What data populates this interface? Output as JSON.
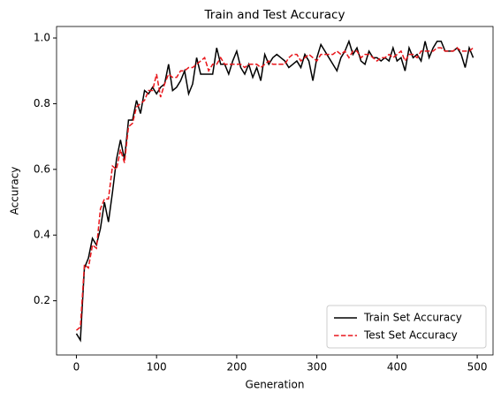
{
  "chart_data": {
    "type": "line",
    "title": "Train and Test Accuracy",
    "x_label": "Generation",
    "y_label": "Accuracy",
    "x": [
      0,
      5,
      10,
      15,
      20,
      25,
      30,
      35,
      40,
      45,
      50,
      55,
      60,
      65,
      70,
      75,
      80,
      85,
      90,
      95,
      100,
      105,
      110,
      115,
      120,
      125,
      130,
      135,
      140,
      145,
      150,
      155,
      160,
      165,
      170,
      175,
      180,
      185,
      190,
      195,
      200,
      205,
      210,
      215,
      220,
      225,
      230,
      235,
      240,
      245,
      250,
      255,
      260,
      265,
      270,
      275,
      280,
      285,
      290,
      295,
      300,
      305,
      310,
      315,
      320,
      325,
      330,
      335,
      340,
      345,
      350,
      355,
      360,
      365,
      370,
      375,
      380,
      385,
      390,
      395,
      400,
      405,
      410,
      415,
      420,
      425,
      430,
      435,
      440,
      445,
      450,
      455,
      460,
      465,
      470,
      475,
      480,
      485,
      490,
      495
    ],
    "series": [
      {
        "name": "Train Set Accuracy",
        "color": "#000000",
        "dash": false,
        "values": [
          0.1,
          0.08,
          0.3,
          0.33,
          0.39,
          0.37,
          0.42,
          0.5,
          0.44,
          0.53,
          0.63,
          0.69,
          0.63,
          0.75,
          0.75,
          0.81,
          0.77,
          0.84,
          0.83,
          0.85,
          0.83,
          0.85,
          0.86,
          0.92,
          0.84,
          0.85,
          0.87,
          0.9,
          0.83,
          0.86,
          0.94,
          0.89,
          0.89,
          0.89,
          0.89,
          0.97,
          0.92,
          0.92,
          0.89,
          0.93,
          0.96,
          0.91,
          0.89,
          0.92,
          0.88,
          0.91,
          0.87,
          0.95,
          0.92,
          0.94,
          0.95,
          0.94,
          0.93,
          0.91,
          0.92,
          0.93,
          0.91,
          0.95,
          0.93,
          0.87,
          0.94,
          0.98,
          0.96,
          0.94,
          0.92,
          0.9,
          0.94,
          0.96,
          0.99,
          0.95,
          0.97,
          0.93,
          0.92,
          0.96,
          0.94,
          0.94,
          0.93,
          0.94,
          0.93,
          0.97,
          0.93,
          0.94,
          0.9,
          0.97,
          0.94,
          0.95,
          0.93,
          0.99,
          0.94,
          0.97,
          0.99,
          0.99,
          0.96,
          0.96,
          0.96,
          0.97,
          0.95,
          0.91,
          0.97,
          0.94
        ]
      },
      {
        "name": "Test Set Accuracy",
        "color": "#e8161b",
        "dash": true,
        "values": [
          0.11,
          0.12,
          0.31,
          0.3,
          0.37,
          0.36,
          0.48,
          0.51,
          0.51,
          0.61,
          0.6,
          0.66,
          0.62,
          0.73,
          0.74,
          0.79,
          0.8,
          0.81,
          0.84,
          0.84,
          0.89,
          0.82,
          0.86,
          0.89,
          0.88,
          0.88,
          0.9,
          0.9,
          0.91,
          0.91,
          0.92,
          0.93,
          0.94,
          0.9,
          0.92,
          0.92,
          0.94,
          0.92,
          0.92,
          0.92,
          0.92,
          0.92,
          0.91,
          0.92,
          0.92,
          0.92,
          0.91,
          0.92,
          0.93,
          0.92,
          0.92,
          0.92,
          0.92,
          0.94,
          0.95,
          0.95,
          0.93,
          0.94,
          0.95,
          0.94,
          0.93,
          0.95,
          0.95,
          0.95,
          0.95,
          0.96,
          0.95,
          0.96,
          0.94,
          0.96,
          0.96,
          0.94,
          0.95,
          0.95,
          0.94,
          0.93,
          0.94,
          0.94,
          0.95,
          0.94,
          0.95,
          0.96,
          0.93,
          0.95,
          0.95,
          0.94,
          0.96,
          0.96,
          0.96,
          0.96,
          0.97,
          0.97,
          0.96,
          0.96,
          0.96,
          0.97,
          0.96,
          0.96,
          0.96,
          0.97
        ]
      }
    ],
    "xlim": [
      -24.75,
      519.75
    ],
    "ylim": [
      0.035,
      1.035
    ],
    "xticks": [
      0,
      100,
      200,
      300,
      400,
      500
    ],
    "yticks": [
      0.2,
      0.4,
      0.6,
      0.8,
      {
        "value": 1,
        "label": "1.0"
      }
    ],
    "legend": "lower right"
  }
}
